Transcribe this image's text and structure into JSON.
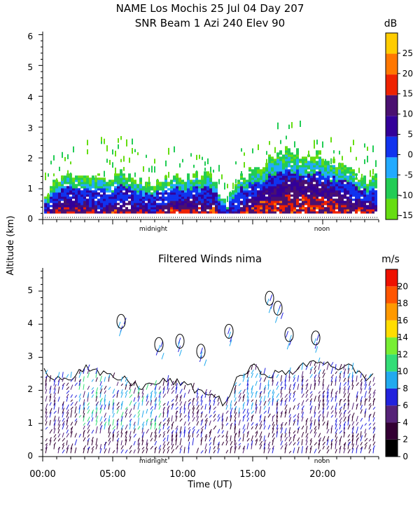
{
  "chart_data": [
    {
      "type": "heatmap",
      "title_line1": "NAME Los Mochis   25 Jul 04 Day 207",
      "title_line2": "SNR Beam 1 Azi 240 Elev 90",
      "ylabel": "Altitude (km)",
      "ylim": [
        0,
        6.1
      ],
      "y_ticks": [
        "0",
        "1",
        "2",
        "3",
        "4",
        "5",
        "6"
      ],
      "x_markers": [
        "midnight",
        "noon"
      ],
      "colorbar": {
        "unit": "dB",
        "ticks": [
          "-15",
          "-10",
          "-5",
          "0",
          "5",
          "10",
          "15",
          "20",
          "25"
        ],
        "range": [
          -16,
          30
        ],
        "colors": [
          "#66dd11",
          "#22cc55",
          "#22aaff",
          "#1133ee",
          "#330099",
          "#4a1070",
          "#ee2200",
          "#ff7700",
          "#ffcc00"
        ]
      },
      "series": [
        {
          "values": [
            [
              0.6,
              1.3,
              1.5,
              1.3,
              1.3,
              1.4,
              1.5,
              1.2,
              1.2,
              1.3,
              1.4,
              1.4,
              1.3,
              0.4,
              1.3,
              1.6,
              1.9,
              2.2,
              2.2,
              2.1,
              2.0,
              1.7,
              1.5,
              1.3
            ],
            [
              0.2,
              0.5,
              0.6,
              0.5,
              0.4,
              0.5,
              0.5,
              0.4,
              0.3,
              0.5,
              0.6,
              0.5,
              0.6,
              0.1,
              0.4,
              0.7,
              1.0,
              1.2,
              1.3,
              1.2,
              1.1,
              0.9,
              0.6,
              0.5
            ],
            [
              1.2,
              1.9,
              2.1,
              2.2,
              2.3,
              2.4,
              2.3,
              2.2,
              2.1,
              2.0,
              2.0,
              1.8,
              1.7,
              1.5,
              1.9,
              2.3,
              2.7,
              2.8,
              2.9,
              2.8,
              2.6,
              2.4,
              2.2,
              2.1
            ]
          ]
        }
      ]
    },
    {
      "type": "heatmap",
      "title": "Filtered Winds nima",
      "xlabel": "Time (UT)",
      "ylim": [
        0,
        5.7
      ],
      "xlim": [
        0,
        24
      ],
      "y_ticks": [
        "0",
        "1",
        "2",
        "3",
        "4",
        "5"
      ],
      "x_ticks": [
        "00:00",
        "05:00",
        "10:00",
        "15:00",
        "20:00"
      ],
      "x_markers": [
        "midnight",
        "noon"
      ],
      "colorbar": {
        "unit": "m/s",
        "ticks": [
          "0",
          "2",
          "4",
          "6",
          "8",
          "10",
          "12",
          "14",
          "16",
          "18",
          "20"
        ],
        "range": [
          0,
          22
        ],
        "colors": [
          "#000000",
          "#330033",
          "#552277",
          "#2222dd",
          "#22aaee",
          "#33dd77",
          "#77ee33",
          "#ffdd00",
          "#ff9900",
          "#ff5500",
          "#ee1100"
        ]
      },
      "series": [
        {
          "values": [
            2.6,
            2.4,
            2.4,
            2.7,
            2.5,
            2.4,
            2.3,
            2.1,
            2.2,
            2.3,
            2.2,
            2.0,
            1.9,
            1.6,
            2.4,
            2.7,
            2.5,
            2.5,
            2.6,
            2.8,
            2.9,
            2.7,
            2.7,
            2.4
          ]
        }
      ]
    }
  ]
}
